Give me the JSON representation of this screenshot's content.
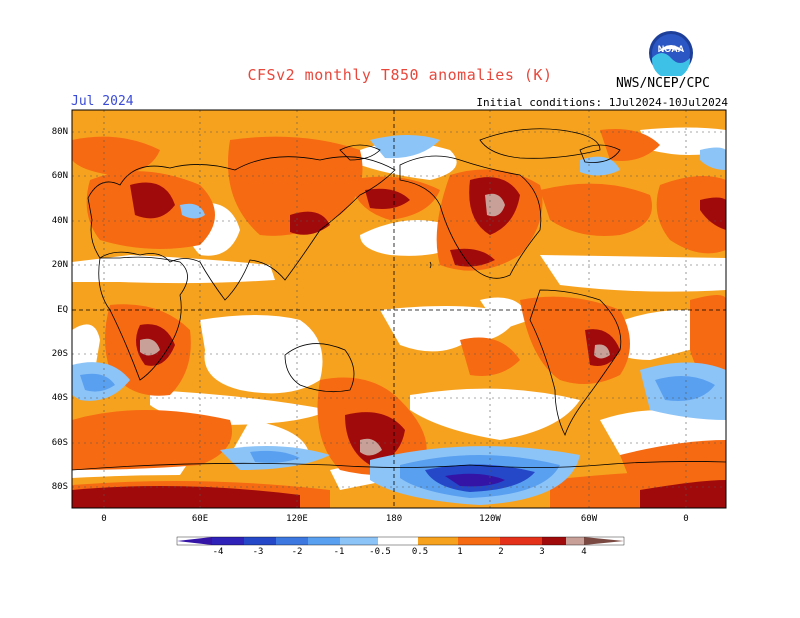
{
  "header": {
    "title": "CFSv2 monthly T850 anomalies (K)",
    "month": "Jul 2024",
    "initial_conditions": "Initial conditions: 1Jul2024-10Jul2024",
    "agency": "NWS/NCEP/CPC"
  },
  "logo": {
    "text": "NOAA",
    "icon": "noaa-logo"
  },
  "map": {
    "projection": "equirectangular",
    "lat_labels": [
      "80N",
      "60N",
      "40N",
      "20N",
      "EQ",
      "20S",
      "40S",
      "60S",
      "80S"
    ],
    "lon_labels": [
      "0",
      "60E",
      "120E",
      "180",
      "120W",
      "60W",
      "0"
    ]
  },
  "colorbar": {
    "labels": [
      "-4",
      "-3",
      "-2",
      "-1",
      "-0.5",
      "0.5",
      "1",
      "2",
      "3",
      "4"
    ],
    "colors": [
      "#3414a6",
      "#2448c8",
      "#3c78e0",
      "#5aa0f0",
      "#8cc4f8",
      "#ffffff",
      "#f7a21e",
      "#f66a12",
      "#e4321a",
      "#a10a0a",
      "#c8a098",
      "#7a4a42"
    ]
  }
}
